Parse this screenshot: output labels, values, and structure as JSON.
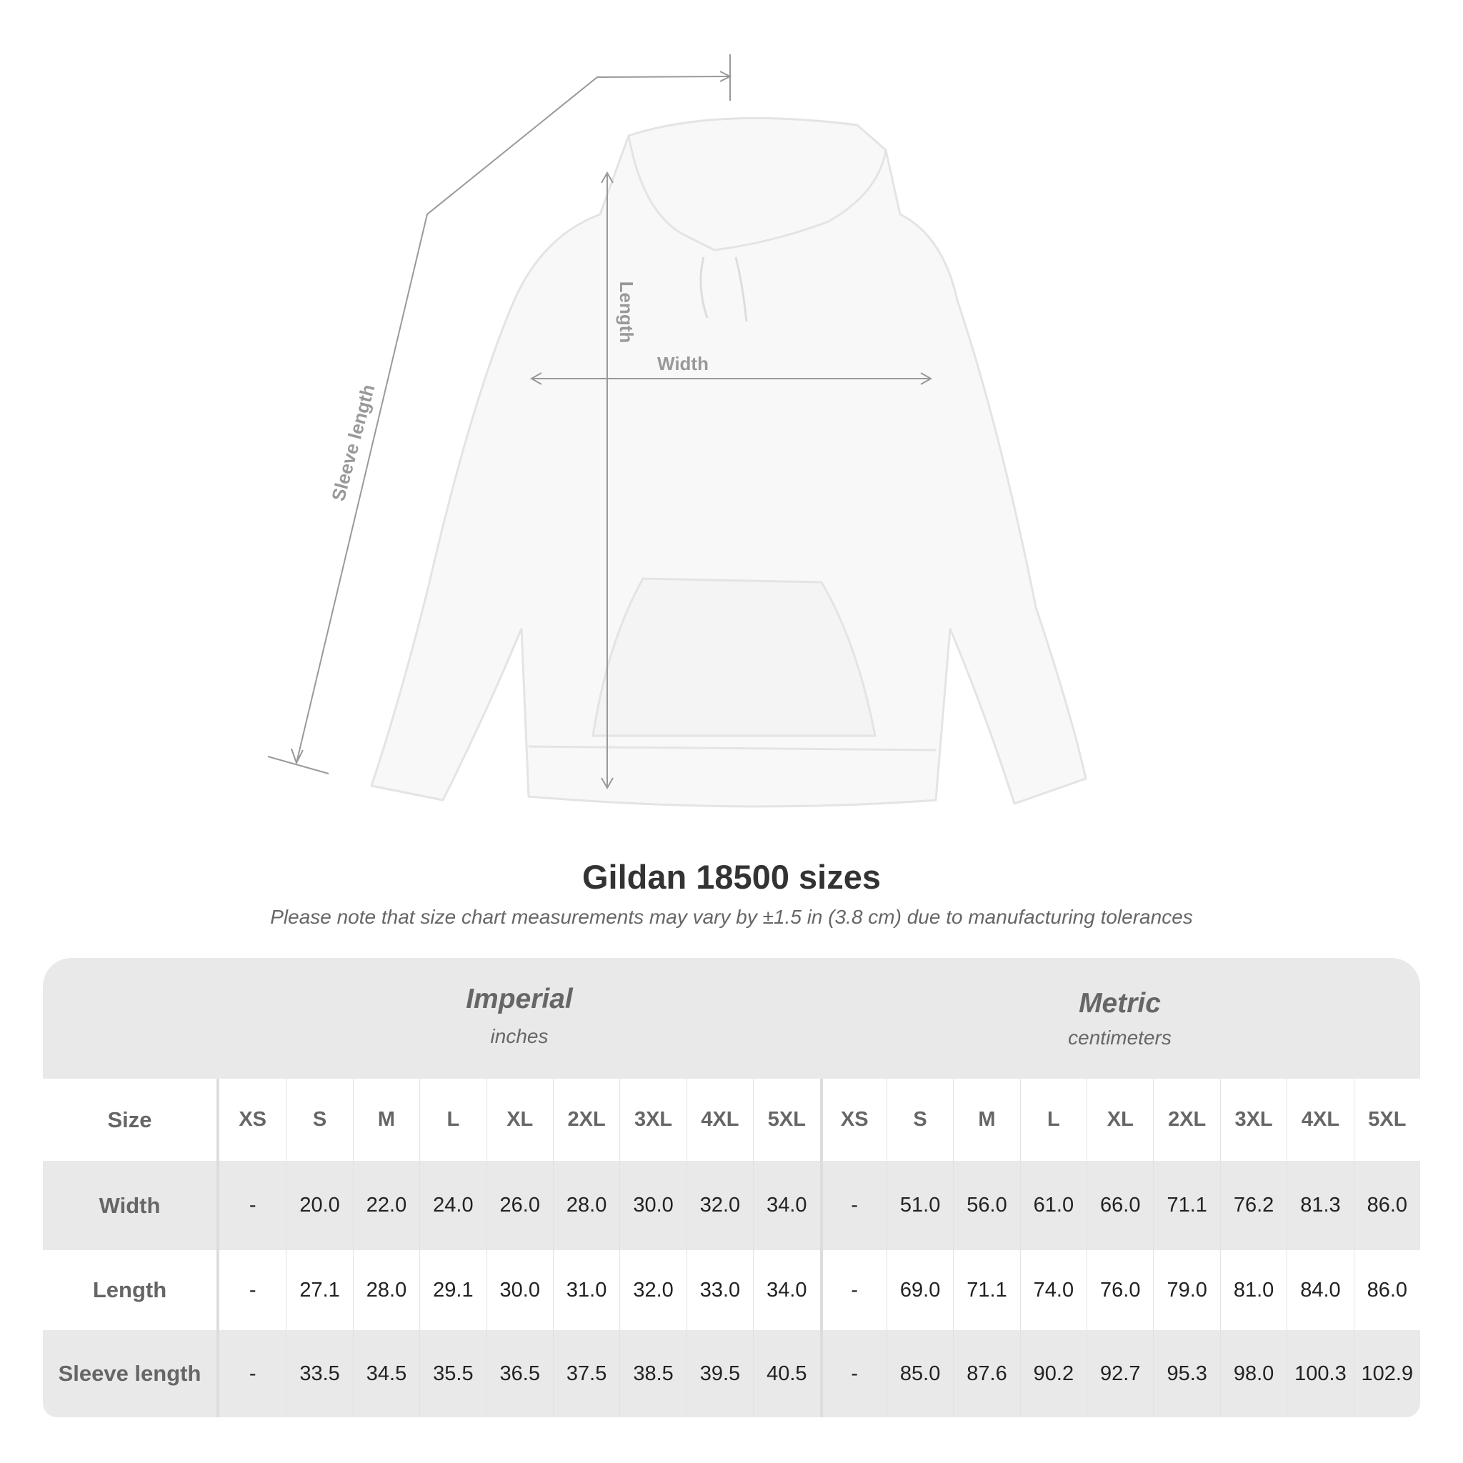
{
  "diagram": {
    "labels": {
      "sleeve": "Sleeve length",
      "length": "Length",
      "width": "Width"
    }
  },
  "title": "Gildan 18500 sizes",
  "note": "Please note that size chart measurements may vary by ±1.5 in (3.8 cm) due to manufacturing tolerances",
  "table": {
    "imperial": {
      "heading": "Imperial",
      "unit": "inches"
    },
    "metric": {
      "heading": "Metric",
      "unit": "centimeters"
    },
    "size_label": "Size",
    "sizes": [
      "XS",
      "S",
      "M",
      "L",
      "XL",
      "2XL",
      "3XL",
      "4XL",
      "5XL"
    ],
    "rows": [
      {
        "label": "Width",
        "imperial": [
          "-",
          "20.0",
          "22.0",
          "24.0",
          "26.0",
          "28.0",
          "30.0",
          "32.0",
          "34.0"
        ],
        "metric": [
          "-",
          "51.0",
          "56.0",
          "61.0",
          "66.0",
          "71.1",
          "76.2",
          "81.3",
          "86.0"
        ]
      },
      {
        "label": "Length",
        "imperial": [
          "-",
          "27.1",
          "28.0",
          "29.1",
          "30.0",
          "31.0",
          "32.0",
          "33.0",
          "34.0"
        ],
        "metric": [
          "-",
          "69.0",
          "71.1",
          "74.0",
          "76.0",
          "79.0",
          "81.0",
          "84.0",
          "86.0"
        ]
      },
      {
        "label": "Sleeve length",
        "imperial": [
          "-",
          "33.5",
          "34.5",
          "35.5",
          "36.5",
          "37.5",
          "38.5",
          "39.5",
          "40.5"
        ],
        "metric": [
          "-",
          "85.0",
          "87.6",
          "90.2",
          "92.7",
          "95.3",
          "98.0",
          "100.3",
          "102.9"
        ]
      }
    ]
  }
}
